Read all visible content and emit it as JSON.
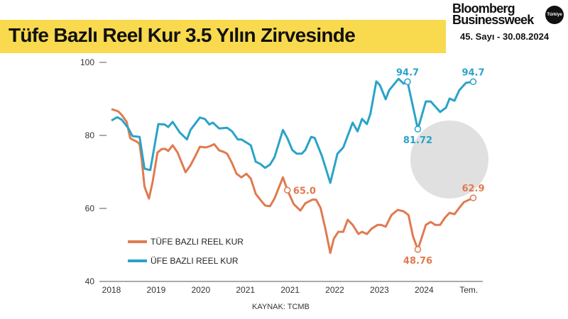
{
  "header": {
    "title": "Tüfe Bazlı Reel Kur 3.5 Yılın Zirvesinde",
    "brand_line1": "Bloomberg",
    "brand_line2": "Businessweek",
    "brand_badge": "Türkiye",
    "issue": "45. Sayı - 30.08.2024"
  },
  "watermark": {
    "line1": "Bloomberg",
    "line2": "Businessweek",
    "badge": "Türkiye"
  },
  "source": "KAYNAK: TCMB",
  "colors": {
    "tufe": "#e07a4f",
    "ufe": "#2aa3c8",
    "title_bg": "#f9d94e"
  },
  "chart_data": {
    "type": "line",
    "title": "Tüfe Bazlı Reel Kur 3.5 Yılın Zirvesinde",
    "categories": [
      "2018",
      "2019",
      "2020",
      "2021",
      "2021",
      "2022",
      "2023",
      "2024",
      "Tem."
    ],
    "x_note_units": "category index",
    "ylim": [
      40,
      100
    ],
    "yticks": [
      40,
      60,
      80,
      100
    ],
    "grid": false,
    "legend": "bottom-left",
    "series": [
      {
        "name": "TÜFE BAZLI REEL KUR",
        "color": "#e07a4f",
        "points": [
          [
            0.0,
            87.2
          ],
          [
            0.15,
            86.6
          ],
          [
            0.23,
            85.6
          ],
          [
            0.34,
            83.7
          ],
          [
            0.42,
            79.2
          ],
          [
            0.58,
            78.2
          ],
          [
            0.63,
            77.6
          ],
          [
            0.68,
            73
          ],
          [
            0.74,
            66
          ],
          [
            0.79,
            64.3
          ],
          [
            0.84,
            62.7
          ],
          [
            0.92,
            67.2
          ],
          [
            1.03,
            75.3
          ],
          [
            1.13,
            76.3
          ],
          [
            1.21,
            76.3
          ],
          [
            1.27,
            75.7
          ],
          [
            1.37,
            77.3
          ],
          [
            1.48,
            75.3
          ],
          [
            1.59,
            72
          ],
          [
            1.66,
            69.9
          ],
          [
            1.77,
            71.8
          ],
          [
            1.88,
            74.4
          ],
          [
            1.98,
            76.9
          ],
          [
            2.11,
            76.7
          ],
          [
            2.22,
            77.1
          ],
          [
            2.3,
            77.6
          ],
          [
            2.41,
            75.9
          ],
          [
            2.51,
            75.5
          ],
          [
            2.59,
            75
          ],
          [
            2.7,
            72.4
          ],
          [
            2.8,
            69.5
          ],
          [
            2.91,
            68.5
          ],
          [
            3.02,
            69.5
          ],
          [
            3.12,
            68.2
          ],
          [
            3.23,
            64
          ],
          [
            3.33,
            62.4
          ],
          [
            3.44,
            60.8
          ],
          [
            3.55,
            60.6
          ],
          [
            3.65,
            62.7
          ],
          [
            3.84,
            68.5
          ],
          [
            3.94,
            65.0
          ],
          [
            4.08,
            61.2
          ],
          [
            4.23,
            59.4
          ],
          [
            4.34,
            61.4
          ],
          [
            4.5,
            62.4
          ],
          [
            4.58,
            62.4
          ],
          [
            4.68,
            60.2
          ],
          [
            4.79,
            54.4
          ],
          [
            4.9,
            47.8
          ],
          [
            4.98,
            51.7
          ],
          [
            5.08,
            53.6
          ],
          [
            5.19,
            53.6
          ],
          [
            5.29,
            56.9
          ],
          [
            5.4,
            55.5
          ],
          [
            5.53,
            53
          ],
          [
            5.61,
            53.6
          ],
          [
            5.72,
            53
          ],
          [
            5.82,
            54.4
          ],
          [
            5.96,
            55.5
          ],
          [
            6.04,
            55.5
          ],
          [
            6.14,
            55
          ],
          [
            6.27,
            58.2
          ],
          [
            6.41,
            59.6
          ],
          [
            6.54,
            59.2
          ],
          [
            6.65,
            58.2
          ],
          [
            6.75,
            52.4
          ],
          [
            6.86,
            48.76
          ],
          [
            6.94,
            51.7
          ],
          [
            7.04,
            55.5
          ],
          [
            7.15,
            56.3
          ],
          [
            7.25,
            55.5
          ],
          [
            7.36,
            55.5
          ],
          [
            7.47,
            57.5
          ],
          [
            7.57,
            58.8
          ],
          [
            7.68,
            58.4
          ],
          [
            7.79,
            60.2
          ],
          [
            7.89,
            61.7
          ],
          [
            8.1,
            62.9
          ]
        ]
      },
      {
        "name": "ÜFE BAZLI REEL KUR",
        "color": "#2aa3c8",
        "points": [
          [
            0.0,
            84.1
          ],
          [
            0.13,
            85.0
          ],
          [
            0.23,
            84.3
          ],
          [
            0.37,
            82.1
          ],
          [
            0.47,
            79.8
          ],
          [
            0.63,
            79.6
          ],
          [
            0.74,
            70.9
          ],
          [
            0.87,
            70.5
          ],
          [
            1.05,
            83.1
          ],
          [
            1.19,
            83
          ],
          [
            1.27,
            82.3
          ],
          [
            1.37,
            83.7
          ],
          [
            1.53,
            80.8
          ],
          [
            1.69,
            78.9
          ],
          [
            1.77,
            81.5
          ],
          [
            1.98,
            84.9
          ],
          [
            2.09,
            84.5
          ],
          [
            2.19,
            83
          ],
          [
            2.27,
            83.5
          ],
          [
            2.41,
            81.9
          ],
          [
            2.59,
            82.1
          ],
          [
            2.7,
            81.1
          ],
          [
            2.83,
            78.9
          ],
          [
            2.91,
            78.9
          ],
          [
            3.12,
            77.3
          ],
          [
            3.23,
            72.8
          ],
          [
            3.33,
            72.2
          ],
          [
            3.44,
            71.1
          ],
          [
            3.55,
            72
          ],
          [
            3.65,
            74
          ],
          [
            3.84,
            81.5
          ],
          [
            3.94,
            79.2
          ],
          [
            4.05,
            76
          ],
          [
            4.15,
            75
          ],
          [
            4.26,
            75
          ],
          [
            4.34,
            76
          ],
          [
            4.47,
            79.6
          ],
          [
            4.55,
            79.3
          ],
          [
            4.71,
            74.4
          ],
          [
            4.9,
            67
          ],
          [
            5.06,
            75
          ],
          [
            5.19,
            76.7
          ],
          [
            5.4,
            83.5
          ],
          [
            5.51,
            81.1
          ],
          [
            5.61,
            84.5
          ],
          [
            5.72,
            83.1
          ],
          [
            5.8,
            86
          ],
          [
            5.93,
            94.8
          ],
          [
            6.01,
            93.8
          ],
          [
            6.14,
            89.9
          ],
          [
            6.22,
            92.4
          ],
          [
            6.43,
            95.5
          ],
          [
            6.54,
            94.2
          ],
          [
            6.63,
            94.7
          ],
          [
            6.86,
            81.72
          ],
          [
            7.04,
            89.3
          ],
          [
            7.15,
            89.3
          ],
          [
            7.36,
            86.4
          ],
          [
            7.49,
            87.6
          ],
          [
            7.57,
            90.1
          ],
          [
            7.68,
            89.5
          ],
          [
            7.79,
            92.4
          ],
          [
            7.94,
            94.4
          ],
          [
            8.1,
            94.7
          ]
        ]
      }
    ],
    "annotations": [
      {
        "series": 1,
        "x": 6.63,
        "y": 94.7,
        "label": "94.7",
        "pos": "above"
      },
      {
        "series": 1,
        "x": 6.86,
        "y": 81.72,
        "label": "81.72",
        "pos": "below"
      },
      {
        "series": 1,
        "x": 8.1,
        "y": 94.7,
        "label": "94.7",
        "pos": "above"
      },
      {
        "series": 0,
        "x": 3.94,
        "y": 65.0,
        "label": "65.0",
        "pos": "right"
      },
      {
        "series": 0,
        "x": 8.1,
        "y": 62.9,
        "label": "62.9",
        "pos": "above"
      },
      {
        "series": 0,
        "x": 6.86,
        "y": 48.76,
        "label": "48.76",
        "pos": "below"
      }
    ]
  }
}
